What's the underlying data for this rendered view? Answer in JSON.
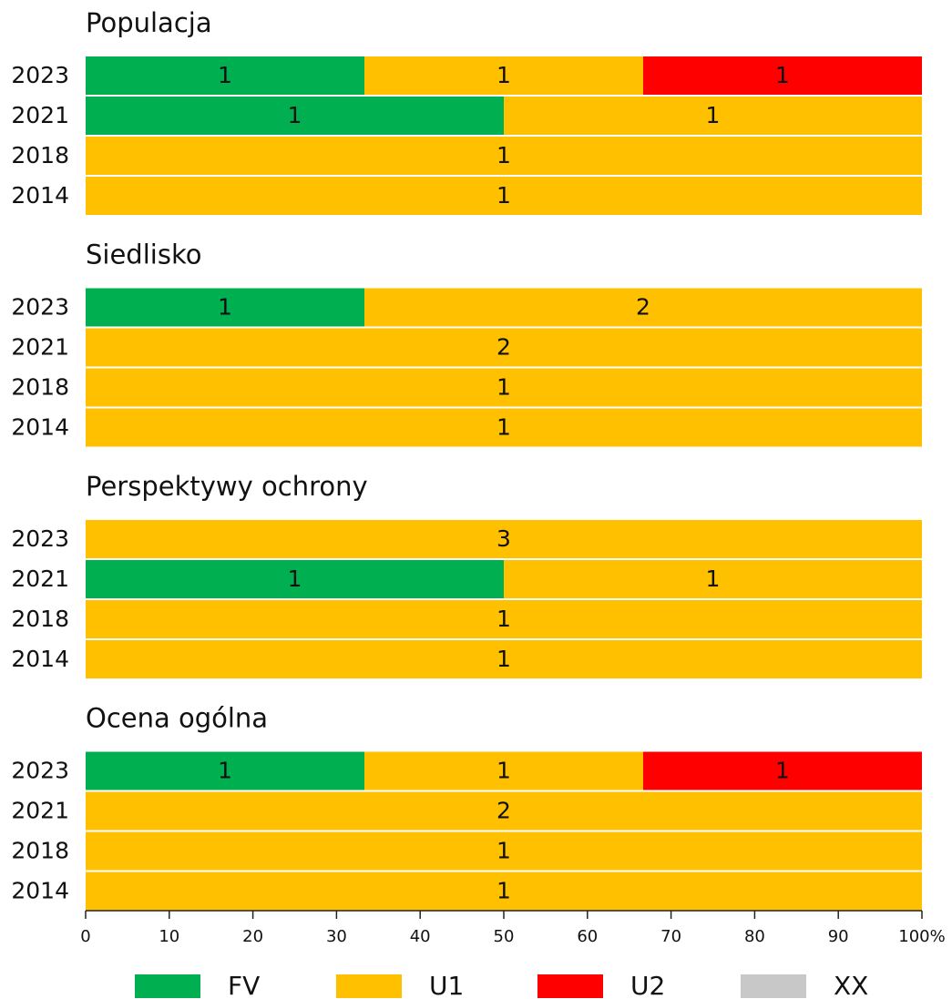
{
  "chart_data": {
    "type": "bar",
    "orientation": "horizontal",
    "stacked_percent": true,
    "series": [
      {
        "name": "FV",
        "color": "#00b050"
      },
      {
        "name": "U1",
        "color": "#ffc000"
      },
      {
        "name": "U2",
        "color": "#ff0000"
      },
      {
        "name": "XX",
        "color": "#c8c8c8"
      }
    ],
    "panels": [
      {
        "title": "Populacja",
        "categories": [
          "2023",
          "2021",
          "2018",
          "2014"
        ],
        "values": [
          [
            1,
            1,
            1,
            0
          ],
          [
            1,
            1,
            0,
            0
          ],
          [
            0,
            1,
            0,
            0
          ],
          [
            0,
            1,
            0,
            0
          ]
        ]
      },
      {
        "title": "Siedlisko",
        "categories": [
          "2023",
          "2021",
          "2018",
          "2014"
        ],
        "values": [
          [
            1,
            2,
            0,
            0
          ],
          [
            0,
            2,
            0,
            0
          ],
          [
            0,
            1,
            0,
            0
          ],
          [
            0,
            1,
            0,
            0
          ]
        ]
      },
      {
        "title": "Perspektywy ochrony",
        "categories": [
          "2023",
          "2021",
          "2018",
          "2014"
        ],
        "values": [
          [
            0,
            3,
            0,
            0
          ],
          [
            1,
            1,
            0,
            0
          ],
          [
            0,
            1,
            0,
            0
          ],
          [
            0,
            1,
            0,
            0
          ]
        ]
      },
      {
        "title": "Ocena ogólna",
        "categories": [
          "2023",
          "2021",
          "2018",
          "2014"
        ],
        "values": [
          [
            1,
            1,
            1,
            0
          ],
          [
            0,
            2,
            0,
            0
          ],
          [
            0,
            1,
            0,
            0
          ],
          [
            0,
            1,
            0,
            0
          ]
        ]
      }
    ],
    "xlim": [
      0,
      100
    ],
    "xticks": [
      0,
      10,
      20,
      30,
      40,
      50,
      60,
      70,
      80,
      90,
      {
        "value": 100,
        "label": "100%"
      }
    ]
  }
}
